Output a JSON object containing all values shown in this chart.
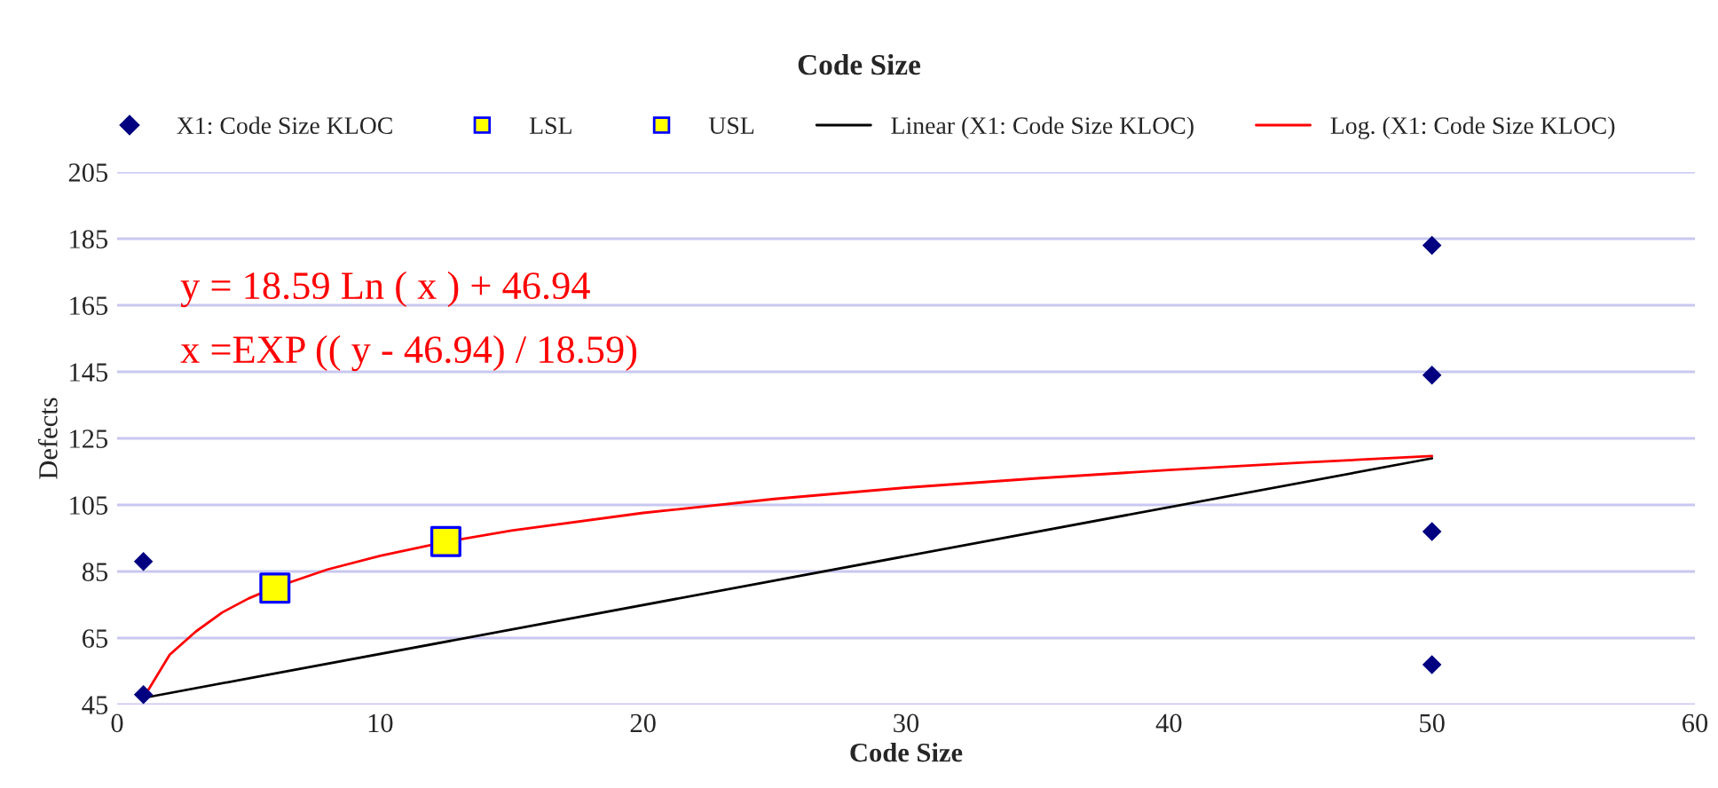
{
  "chart_data": {
    "type": "scatter",
    "title": "Code Size",
    "xlabel": "Code Size",
    "ylabel": "Defects",
    "xlim": [
      0,
      60
    ],
    "xticks": [
      0,
      10,
      20,
      30,
      40,
      50,
      60
    ],
    "ylim": [
      45,
      205
    ],
    "yticks": [
      45,
      65,
      85,
      105,
      125,
      145,
      165,
      185,
      205
    ],
    "grid": "y",
    "legend": "top",
    "annotations": [
      "y = 18.59 Ln ( x ) + 46.94",
      "x =EXP (( y - 46.94) / 18.59)"
    ],
    "series": [
      {
        "name": "X1: Code Size KLOC",
        "marker": "diamond",
        "color": "#000080",
        "x": [
          1,
          1,
          50,
          50,
          50,
          50
        ],
        "values": [
          48,
          88,
          183,
          144,
          97,
          57
        ]
      },
      {
        "name": "LSL",
        "marker": "square",
        "color": "#ffff00",
        "x": [
          6
        ],
        "values": [
          80
        ]
      },
      {
        "name": "USL",
        "marker": "square",
        "color": "#ffff00",
        "x": [
          12.5
        ],
        "values": [
          94
        ]
      },
      {
        "name": "Linear (X1: Code Size KLOC)",
        "type": "line",
        "color": "#000000",
        "x": [
          1,
          50
        ],
        "values": [
          47,
          119
        ]
      },
      {
        "name": "Log. (X1: Code Size KLOC)",
        "type": "line",
        "color": "#ff0000",
        "x": [
          1,
          2,
          3,
          4,
          5,
          6,
          8,
          10,
          12.5,
          15,
          20,
          25,
          30,
          35,
          40,
          45,
          50
        ],
        "values": [
          47,
          60,
          67,
          72.7,
          76.9,
          80.2,
          85.6,
          89.7,
          93.9,
          97.3,
          102.6,
          106.8,
          110.2,
          113.0,
          115.5,
          117.7,
          119.7
        ]
      }
    ]
  }
}
